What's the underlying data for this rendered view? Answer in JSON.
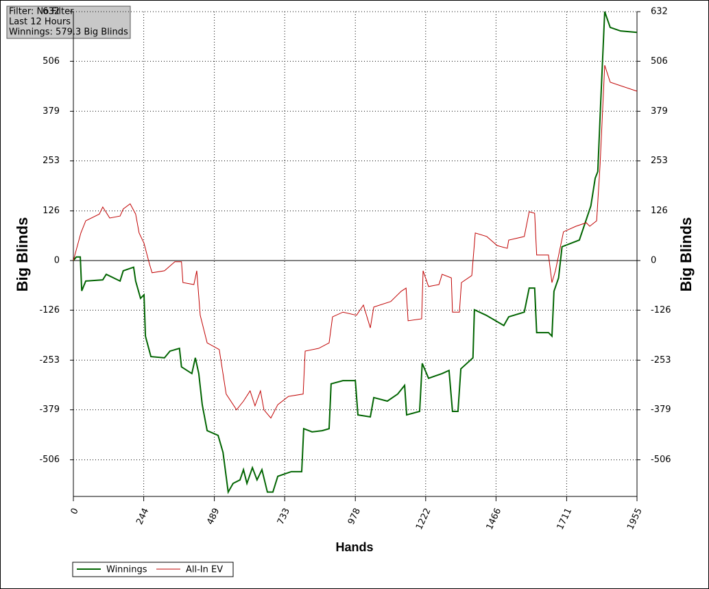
{
  "chart_data": {
    "type": "line",
    "annotations": [
      "Filter: No Filter",
      "Last  12 Hours",
      "Winnings: 579.3 Big Blinds"
    ],
    "ylabel": "Big Blinds",
    "y2label": "Big Blinds",
    "xlabel": "Hands",
    "xlim": [
      0,
      1955
    ],
    "xticks": [
      0,
      244,
      489,
      733,
      978,
      1222,
      1466,
      1711,
      1955
    ],
    "ylim": [
      -599,
      632
    ],
    "yticks": [
      -506,
      -379,
      -253,
      -126,
      0,
      126,
      253,
      379,
      506,
      632
    ],
    "grid": true,
    "series": [
      {
        "name": "Winnings",
        "color": "#006400",
        "x": [
          0,
          10,
          24,
          29,
          43,
          102,
          114,
          162,
          173,
          209,
          216,
          233,
          245,
          250,
          269,
          316,
          335,
          368,
          375,
          411,
          423,
          435,
          447,
          464,
          502,
          519,
          537,
          554,
          578,
          590,
          602,
          621,
          637,
          654,
          673,
          692,
          709,
          756,
          792,
          799,
          828,
          863,
          887,
          894,
          935,
          978,
          987,
          1030,
          1042,
          1089,
          1125,
          1149,
          1156,
          1201,
          1210,
          1232,
          1279,
          1303,
          1315,
          1334,
          1344,
          1386,
          1391,
          1432,
          1493,
          1510,
          1564,
          1581,
          1600,
          1607,
          1648,
          1660,
          1667,
          1683,
          1695,
          1755,
          1779,
          1795,
          1810,
          1819,
          1829,
          1843,
          1862,
          1898,
          1955
        ],
        "values": [
          0,
          9,
          9,
          -77,
          -52,
          -49,
          -35,
          -52,
          -26,
          -17,
          -52,
          -96,
          -87,
          -192,
          -244,
          -247,
          -230,
          -223,
          -270,
          -287,
          -247,
          -287,
          -366,
          -432,
          -444,
          -487,
          -588,
          -566,
          -557,
          -531,
          -566,
          -526,
          -557,
          -531,
          -588,
          -588,
          -548,
          -536,
          -536,
          -427,
          -435,
          -432,
          -427,
          -313,
          -305,
          -305,
          -392,
          -397,
          -348,
          -357,
          -339,
          -317,
          -392,
          -383,
          -261,
          -299,
          -287,
          -279,
          -383,
          -383,
          -275,
          -247,
          -125,
          -139,
          -165,
          -143,
          -131,
          -70,
          -70,
          -183,
          -183,
          -192,
          -78,
          -44,
          35,
          52,
          104,
          139,
          209,
          226,
          400,
          632,
          592,
          583,
          579.3
        ]
      },
      {
        "name": "All-In EV",
        "color": "#c00000",
        "x": [
          0,
          26,
          43,
          90,
          102,
          126,
          162,
          173,
          197,
          216,
          228,
          245,
          264,
          273,
          316,
          352,
          375,
          380,
          418,
          428,
          440,
          464,
          506,
          530,
          566,
          590,
          613,
          630,
          649,
          661,
          685,
          709,
          746,
          797,
          804,
          851,
          887,
          899,
          935,
          982,
          1006,
          1030,
          1042,
          1101,
          1137,
          1154,
          1161,
          1208,
          1213,
          1232,
          1268,
          1279,
          1311,
          1315,
          1339,
          1346,
          1382,
          1394,
          1434,
          1470,
          1505,
          1510,
          1564,
          1581,
          1600,
          1607,
          1648,
          1660,
          1672,
          1700,
          1743,
          1779,
          1791,
          1815,
          1827,
          1843,
          1862,
          1898,
          1955
        ],
        "values": [
          0,
          70,
          101,
          118,
          136,
          108,
          113,
          131,
          144,
          118,
          70,
          44,
          -9,
          -31,
          -26,
          -3,
          -3,
          -56,
          -61,
          -26,
          -139,
          -209,
          -226,
          -339,
          -379,
          -357,
          -331,
          -369,
          -331,
          -379,
          -400,
          -366,
          -345,
          -339,
          -230,
          -223,
          -209,
          -143,
          -131,
          -139,
          -113,
          -171,
          -118,
          -104,
          -78,
          -70,
          -153,
          -148,
          -26,
          -66,
          -61,
          -35,
          -44,
          -131,
          -131,
          -56,
          -38,
          70,
          61,
          38,
          31,
          52,
          61,
          124,
          120,
          14,
          14,
          -56,
          -26,
          73,
          87,
          96,
          87,
          101,
          244,
          496,
          453,
          444,
          430
        ]
      }
    ]
  }
}
